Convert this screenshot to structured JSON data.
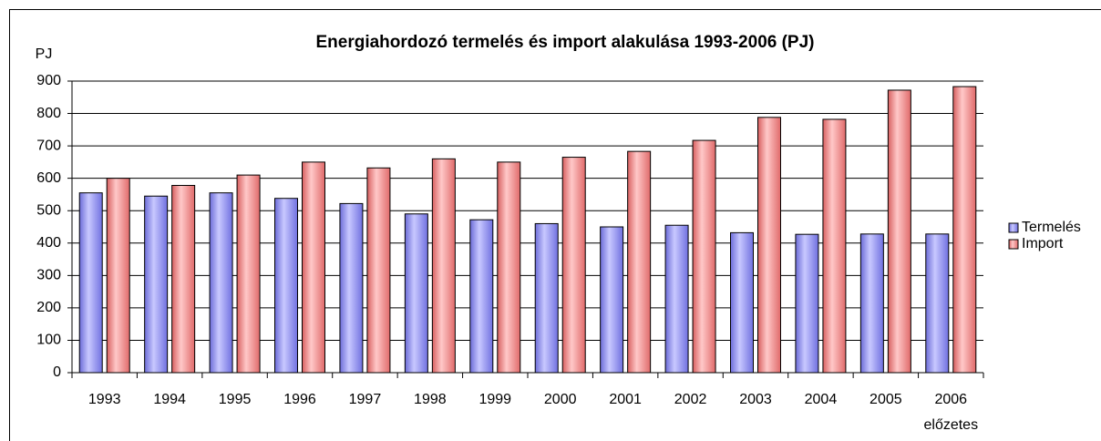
{
  "chart_data": {
    "type": "bar",
    "title": "Energiahordozó termelés és import alakulása 1993-2006 (PJ)",
    "y_label": "PJ",
    "categories": [
      "1993",
      "1994",
      "1995",
      "1996",
      "1997",
      "1998",
      "1999",
      "2000",
      "2001",
      "2002",
      "2003",
      "2004",
      "2005",
      "2006"
    ],
    "annotations": [
      "előzetes"
    ],
    "series": [
      {
        "name": "Termelés",
        "color": "#9999ff",
        "values": [
          555,
          545,
          555,
          538,
          522,
          490,
          472,
          460,
          450,
          455,
          432,
          427,
          428,
          428
        ]
      },
      {
        "name": "Import",
        "color": "#ff9999",
        "values": [
          600,
          578,
          610,
          650,
          632,
          660,
          650,
          665,
          683,
          717,
          788,
          782,
          872,
          883
        ]
      }
    ],
    "ylim": [
      0,
      900
    ],
    "yticks": [
      0,
      100,
      200,
      300,
      400,
      500,
      600,
      700,
      800,
      900
    ],
    "grid": true,
    "legend": "right"
  }
}
